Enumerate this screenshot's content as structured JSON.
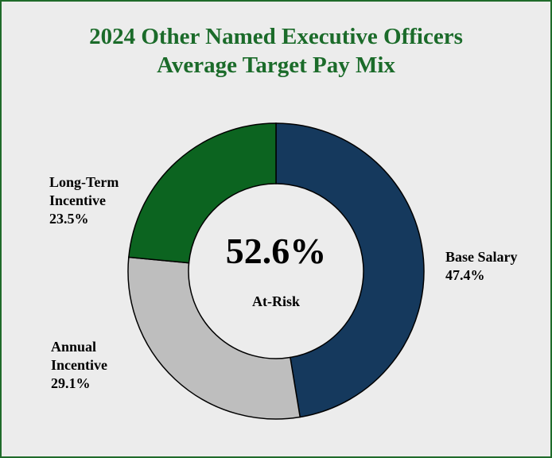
{
  "chart_data": {
    "type": "pie",
    "title_line1": "2024 Other Named Executive Officers",
    "title_line2": "Average Target Pay Mix",
    "center_value": "52.6%",
    "center_label": "At-Risk",
    "slices": [
      {
        "label_line1": "Base Salary",
        "label_line2": "",
        "percent_text": "47.4%",
        "value": 47.4,
        "color": "#15395d"
      },
      {
        "label_line1": "Annual",
        "label_line2": "Incentive",
        "percent_text": "29.1%",
        "value": 29.1,
        "color": "#bebebe"
      },
      {
        "label_line1": "Long-Term",
        "label_line2": "Incentive",
        "percent_text": "23.5%",
        "value": 23.5,
        "color": "#0c6420"
      }
    ]
  },
  "colors": {
    "title": "#1b6b2a",
    "border": "#1f6b2a",
    "background": "#ececec"
  }
}
